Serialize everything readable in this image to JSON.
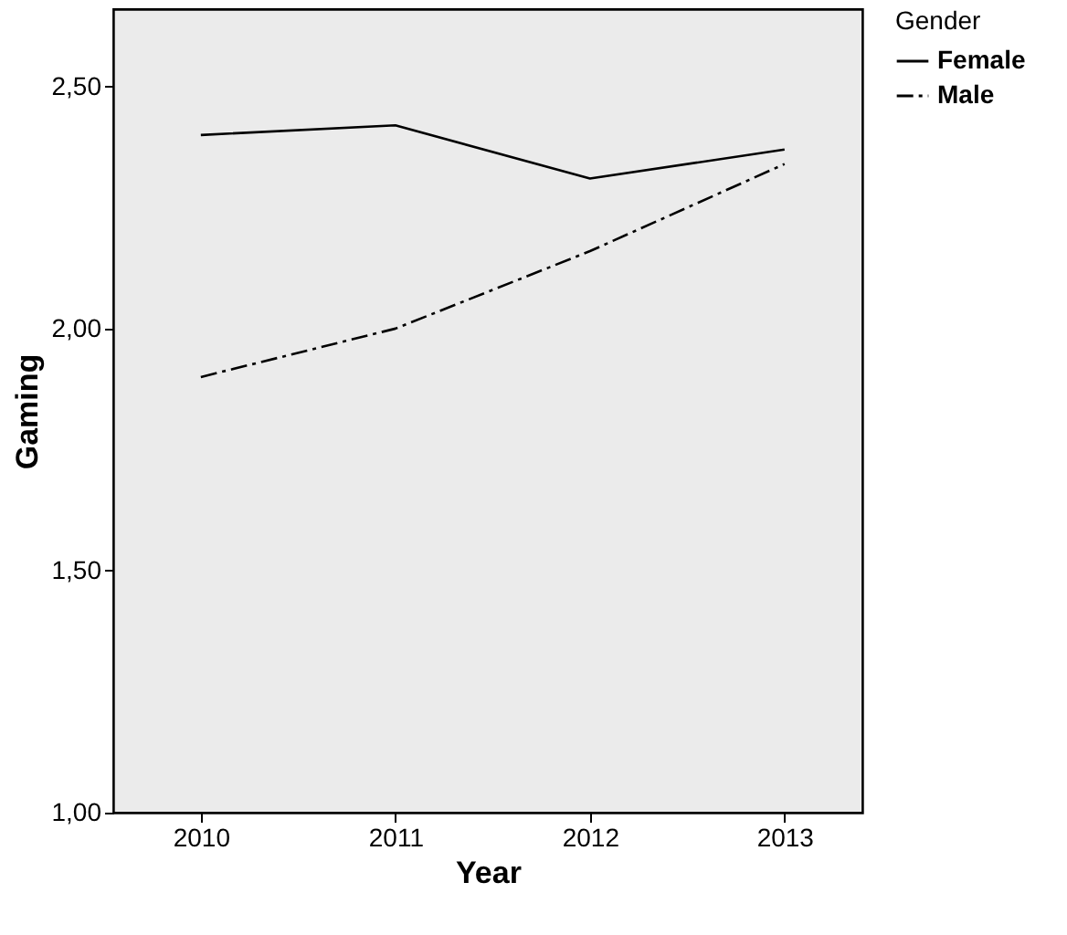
{
  "chart_data": {
    "type": "line",
    "xlabel": "Year",
    "ylabel": "Gaming",
    "legend_title": "Gender",
    "legend": "top right",
    "grid": false,
    "marker": "none",
    "categories": [
      "2010",
      "2011",
      "2012",
      "2013"
    ],
    "ylim": [
      1.0,
      2.66
    ],
    "yticks": [
      {
        "value": 1.0,
        "label": "1,00"
      },
      {
        "value": 1.5,
        "label": "1,50"
      },
      {
        "value": 2.0,
        "label": "2,00"
      },
      {
        "value": 2.5,
        "label": "2,50"
      }
    ],
    "series": [
      {
        "name": "Female",
        "color": "#000000",
        "line_style": "solid",
        "values": [
          2.4,
          2.42,
          2.31,
          2.37
        ]
      },
      {
        "name": "Male",
        "color": "#000000",
        "line_style": "dashed",
        "values": [
          1.9,
          2.0,
          2.16,
          2.34
        ]
      }
    ]
  }
}
